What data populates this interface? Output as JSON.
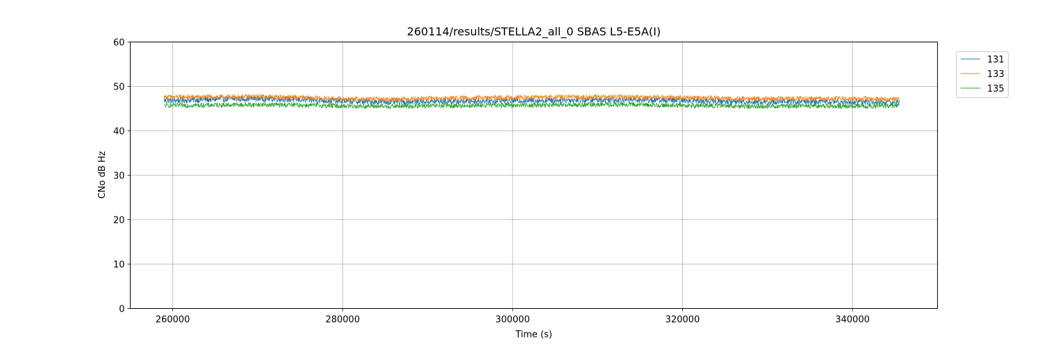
{
  "chart_data": {
    "type": "line",
    "title": "260114/results/STELLA2_all_0 SBAS L5-E5A(I)",
    "xlabel": "Time (s)",
    "ylabel": "CNo dB Hz",
    "xlim": [
      255000,
      350000
    ],
    "ylim": [
      0,
      60
    ],
    "xticks": [
      260000,
      280000,
      300000,
      320000,
      340000
    ],
    "xtick_labels": [
      "260000",
      "280000",
      "300000",
      "320000",
      "340000"
    ],
    "yticks": [
      0,
      10,
      20,
      30,
      40,
      50,
      60
    ],
    "ytick_labels": [
      "0",
      "10",
      "20",
      "30",
      "40",
      "50",
      "60"
    ],
    "grid": true,
    "legend_position": "outside-top-right",
    "series": [
      {
        "name": "131",
        "color": "#1f77b4",
        "x": [
          259000,
          265000,
          270000,
          275000,
          280000,
          285000,
          290000,
          295000,
          300000,
          305000,
          310000,
          315000,
          320000,
          325000,
          330000,
          335000,
          340000,
          345500
        ],
        "y": [
          46.8,
          47.1,
          47.3,
          47.0,
          46.7,
          46.5,
          46.6,
          46.7,
          46.8,
          46.9,
          47.0,
          47.0,
          46.8,
          46.6,
          46.5,
          46.6,
          46.5,
          46.4
        ],
        "noise": 0.7
      },
      {
        "name": "133",
        "color": "#ff7f0e",
        "x": [
          259000,
          265000,
          270000,
          275000,
          280000,
          285000,
          290000,
          295000,
          300000,
          305000,
          310000,
          315000,
          320000,
          325000,
          330000,
          335000,
          340000,
          345500
        ],
        "y": [
          47.6,
          47.6,
          47.7,
          47.5,
          47.2,
          47.1,
          47.3,
          47.4,
          47.5,
          47.6,
          47.6,
          47.6,
          47.5,
          47.3,
          47.2,
          47.3,
          47.2,
          47.1
        ],
        "noise": 0.55
      },
      {
        "name": "135",
        "color": "#2ca02c",
        "x": [
          259000,
          265000,
          270000,
          275000,
          280000,
          285000,
          290000,
          295000,
          300000,
          305000,
          310000,
          315000,
          320000,
          325000,
          330000,
          335000,
          340000,
          345500
        ],
        "y": [
          45.7,
          45.8,
          45.9,
          45.8,
          45.6,
          45.5,
          45.6,
          45.7,
          45.8,
          45.8,
          45.9,
          45.9,
          45.7,
          45.6,
          45.5,
          45.6,
          45.6,
          45.6
        ],
        "noise": 0.55
      }
    ]
  }
}
